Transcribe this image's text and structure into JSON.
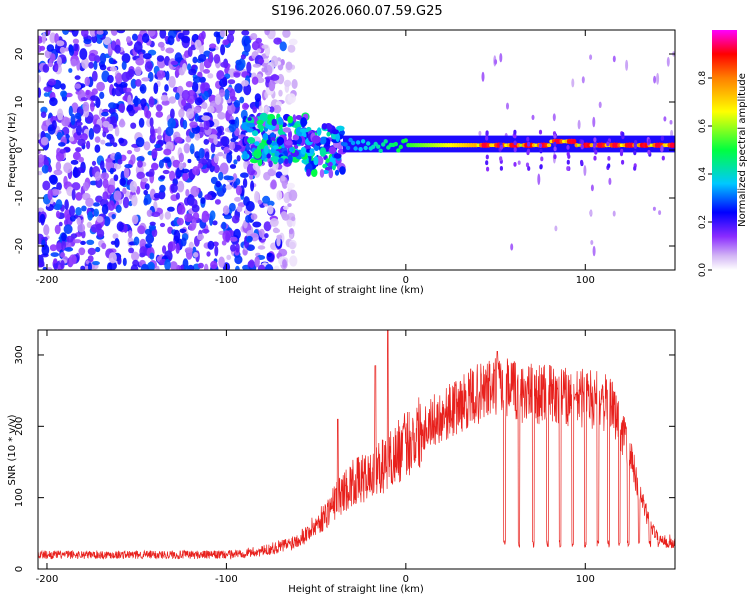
{
  "title": "S196.2026.060.07.59.G25",
  "colors": {
    "snr_line": "#e8201c",
    "axis": "#000000",
    "colorbar_ramp": [
      "#ffffff",
      "#c8a8f0",
      "#6a00ff",
      "#0000ff",
      "#00e0ff",
      "#00ff40",
      "#ffff00",
      "#ff8000",
      "#ff0000",
      "#ff00ff"
    ]
  },
  "chart_data": [
    {
      "type": "heatmap",
      "title": "S196.2026.060.07.59.G25",
      "xlabel": "Height of straight line (km)",
      "ylabel": "Frequency (Hz)",
      "xlim": [
        -205,
        150
      ],
      "ylim": [
        -25,
        25
      ],
      "xticks": [
        -200,
        -100,
        0,
        100
      ],
      "xtick_labels": [
        "-200",
        "-100",
        "0",
        "100"
      ],
      "yticks": [
        -20,
        -10,
        0,
        10,
        20
      ],
      "ytick_labels": [
        "-20",
        "-10",
        "0",
        "10",
        "20"
      ],
      "colorbar": {
        "label": "Normalized spectral amplitude",
        "range": [
          0,
          1
        ],
        "ticks": [
          0.0,
          0.2,
          0.4,
          0.6,
          0.8
        ],
        "tick_labels": [
          "0.0",
          "0.2",
          "0.4",
          "0.6",
          "0.8"
        ]
      },
      "features": [
        {
          "name": "noise",
          "x_range": [
            -205,
            -62
          ],
          "freq_range": [
            -25,
            25
          ],
          "amplitude": [
            0.05,
            0.3
          ]
        },
        {
          "name": "transition",
          "x_range": [
            -90,
            -35
          ],
          "freq_center": 2,
          "freq_spread": 5,
          "amplitude": [
            0.1,
            0.5
          ]
        },
        {
          "name": "main_tone",
          "x_range": [
            -35,
            150
          ],
          "freq_center": 1,
          "amplitude": [
            0.3,
            1.0
          ]
        }
      ]
    },
    {
      "type": "line",
      "xlabel": "Height of straight line (km)",
      "ylabel": "SNR (10 * v/v)",
      "xlim": [
        -205,
        150
      ],
      "ylim": [
        0,
        335
      ],
      "xticks": [
        -200,
        -100,
        0,
        100
      ],
      "xtick_labels": [
        "-200",
        "-100",
        "0",
        "100"
      ],
      "yticks": [
        0,
        100,
        200,
        300
      ],
      "ytick_labels": [
        "0",
        "100",
        "200",
        "300"
      ],
      "series": [
        {
          "name": "SNR",
          "envelope_x": [
            -205,
            -100,
            -80,
            -65,
            -55,
            -45,
            -38,
            -30,
            -20,
            -10,
            0,
            10,
            20,
            30,
            40,
            50,
            60,
            70,
            80,
            90,
            100,
            110,
            115,
            120,
            125,
            130,
            135,
            140,
            150
          ],
          "envelope_y": [
            20,
            20,
            25,
            35,
            50,
            75,
            100,
            120,
            130,
            150,
            175,
            200,
            215,
            230,
            245,
            255,
            250,
            245,
            245,
            240,
            240,
            235,
            225,
            200,
            160,
            110,
            70,
            45,
            35
          ],
          "spikes": [
            {
              "x": -38,
              "y": 210
            },
            {
              "x": -17,
              "y": 285
            },
            {
              "x": -10,
              "y": 335
            },
            {
              "x": 51,
              "y": 305
            }
          ],
          "dropouts_x": [
            55,
            63,
            71,
            79,
            86,
            93,
            100,
            107,
            113,
            119,
            124,
            130,
            136,
            141,
            146
          ],
          "dropout_level": 30
        }
      ]
    }
  ]
}
